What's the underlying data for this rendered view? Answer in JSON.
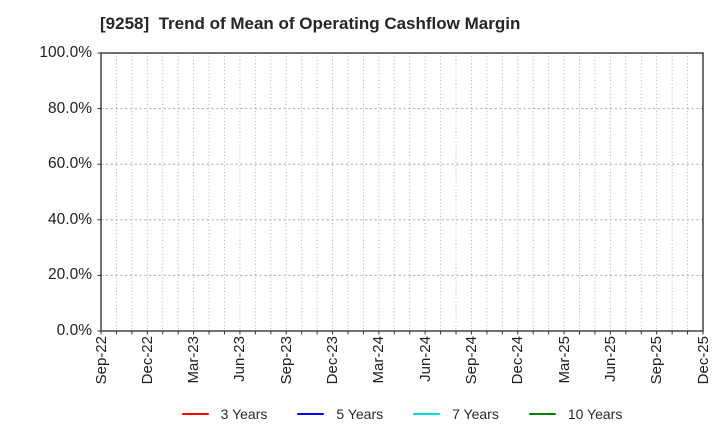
{
  "style": {
    "background": "#ffffff",
    "axis_color": "#333333",
    "grid_color": "#b0b0b0",
    "title_color": "#262626",
    "tick_label_color": "#1f1f1f",
    "legend_label_color": "#2a2a2a"
  },
  "chart_data": {
    "type": "line",
    "title": "[9258]  Trend of Mean of Operating Cashflow Margin",
    "xlabel": "",
    "ylabel": "",
    "ylim": [
      0,
      100
    ],
    "grid": true,
    "legend_position": "bottom",
    "x_tick_labels": [
      "Sep-22",
      "Dec-22",
      "Mar-23",
      "Jun-23",
      "Sep-23",
      "Dec-23",
      "Mar-24",
      "Jun-24",
      "Sep-24",
      "Dec-24",
      "Mar-25",
      "Jun-25",
      "Sep-25",
      "Dec-25"
    ],
    "x_minor_gridline_count": 39,
    "y_ticks": [
      {
        "value": 0,
        "label": "0.0%"
      },
      {
        "value": 20,
        "label": "20.0%"
      },
      {
        "value": 40,
        "label": "40.0%"
      },
      {
        "value": 60,
        "label": "60.0%"
      },
      {
        "value": 80,
        "label": "80.0%"
      },
      {
        "value": 100,
        "label": "100.0%"
      }
    ],
    "series": [
      {
        "name": "3 Years",
        "color": "#ff0000",
        "values": []
      },
      {
        "name": "5 Years",
        "color": "#0000ff",
        "values": []
      },
      {
        "name": "7 Years",
        "color": "#00dde6",
        "values": []
      },
      {
        "name": "10 Years",
        "color": "#008000",
        "values": []
      }
    ]
  }
}
